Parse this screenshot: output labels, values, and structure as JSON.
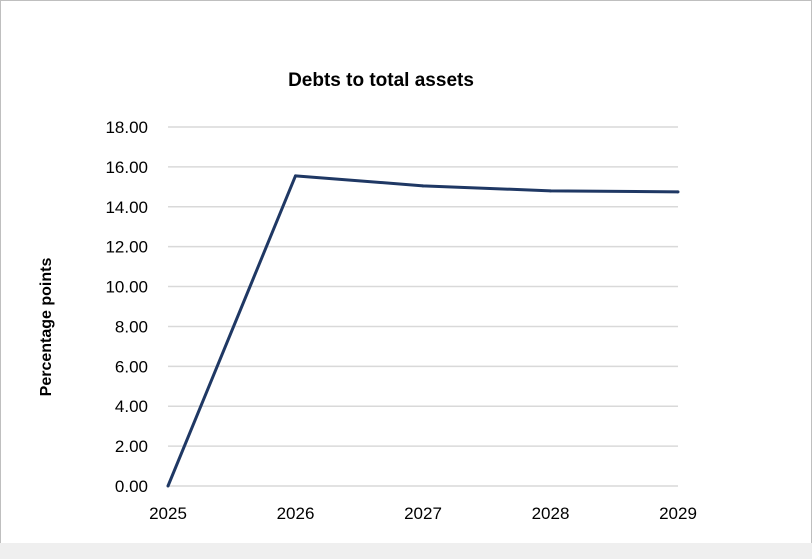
{
  "chart_data": {
    "type": "line",
    "title": "Debts to total assets",
    "ylabel": "Percentage points",
    "xlabel": "",
    "categories": [
      "2025",
      "2026",
      "2027",
      "2028",
      "2029"
    ],
    "series": [
      {
        "values": [
          0.0,
          15.55,
          15.05,
          14.8,
          14.75
        ]
      }
    ],
    "ylim": [
      0,
      18
    ],
    "yticks": [
      "0.00",
      "2.00",
      "4.00",
      "6.00",
      "8.00",
      "10.00",
      "12.00",
      "14.00",
      "16.00",
      "18.00"
    ],
    "grid": true,
    "legend": "none",
    "colors": {
      "line": "#1f3864",
      "grid": "#d9d9d9",
      "text": "#000000"
    }
  }
}
